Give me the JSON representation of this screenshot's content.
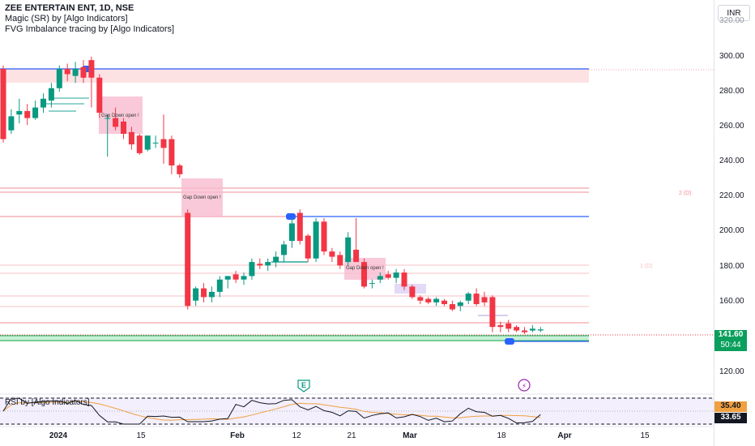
{
  "legend": {
    "title": "ZEE ENTERTAIN ENT, 1D, NSE",
    "indicator1": "Magic (SR) by [Algo Indicators]",
    "indicator2": "FVG Imbalance tracing by [Algo Indicators]"
  },
  "rsi_label": "RSI by [Algo  Indicators]",
  "currency": "INR",
  "price_ticks": [
    "320.00",
    "300.00",
    "280.00",
    "260.00",
    "240.00",
    "220.00",
    "200.00",
    "180.00",
    "160.00",
    "120.00"
  ],
  "price_badge": {
    "price": "141.60",
    "countdown": "50:44"
  },
  "rsi_values": {
    "upper": "35.40",
    "current": "33.65"
  },
  "time_ticks": [
    "2024",
    "15",
    "Feb",
    "12",
    "21",
    "Mar",
    "18",
    "Apr",
    "15"
  ],
  "fvg_label": "Gap Down open !",
  "sr_labels": {
    "upper": "2 (D)",
    "lower": "1 (D)"
  },
  "event_markers": {
    "earnings": "E",
    "split": "⚡"
  },
  "colors": {
    "up": "#089981",
    "down": "#f23645",
    "accent": "#2962ff",
    "fvg": "#f8bbd0"
  },
  "chart_data": {
    "type": "candlestick",
    "symbol": "ZEE ENTERTAIN ENT",
    "interval": "1D",
    "ylim": [
      115,
      322
    ],
    "candles": [
      {
        "o": 290,
        "h": 292,
        "l": 248,
        "c": 250
      },
      {
        "o": 255,
        "h": 267,
        "l": 253,
        "c": 263
      },
      {
        "o": 264,
        "h": 273,
        "l": 259,
        "c": 266
      },
      {
        "o": 266,
        "h": 270,
        "l": 258,
        "c": 262
      },
      {
        "o": 262,
        "h": 272,
        "l": 261,
        "c": 268
      },
      {
        "o": 268,
        "h": 276,
        "l": 265,
        "c": 273
      },
      {
        "o": 272,
        "h": 282,
        "l": 268,
        "c": 279
      },
      {
        "o": 279,
        "h": 292,
        "l": 277,
        "c": 290
      },
      {
        "o": 290,
        "h": 293,
        "l": 283,
        "c": 287
      },
      {
        "o": 286,
        "h": 294,
        "l": 282,
        "c": 290
      },
      {
        "o": 291,
        "h": 295,
        "l": 282,
        "c": 285
      },
      {
        "o": 295,
        "h": 297,
        "l": 268,
        "c": 285
      },
      {
        "o": 285,
        "h": 287,
        "l": 262,
        "c": 265
      },
      {
        "o": 262,
        "h": 264,
        "l": 240,
        "c": 262
      },
      {
        "o": 262,
        "h": 268,
        "l": 255,
        "c": 257
      },
      {
        "o": 260,
        "h": 262,
        "l": 250,
        "c": 253
      },
      {
        "o": 254,
        "h": 257,
        "l": 244,
        "c": 247
      },
      {
        "o": 252,
        "h": 253,
        "l": 241,
        "c": 242
      },
      {
        "o": 244,
        "h": 252,
        "l": 243,
        "c": 252
      },
      {
        "o": 248,
        "h": 252,
        "l": 245,
        "c": 248
      },
      {
        "o": 250,
        "h": 264,
        "l": 236,
        "c": 245
      },
      {
        "o": 250,
        "h": 252,
        "l": 230,
        "c": 235
      },
      {
        "o": 235,
        "h": 236,
        "l": 228,
        "c": 230
      },
      {
        "o": 208,
        "h": 210,
        "l": 153,
        "c": 155
      },
      {
        "o": 158,
        "h": 166,
        "l": 155,
        "c": 165
      },
      {
        "o": 165,
        "h": 168,
        "l": 157,
        "c": 160
      },
      {
        "o": 160,
        "h": 166,
        "l": 157,
        "c": 163
      },
      {
        "o": 163,
        "h": 172,
        "l": 160,
        "c": 170
      },
      {
        "o": 170,
        "h": 172,
        "l": 165,
        "c": 172
      },
      {
        "o": 173,
        "h": 175,
        "l": 168,
        "c": 170
      },
      {
        "o": 170,
        "h": 174,
        "l": 167,
        "c": 172
      },
      {
        "o": 172,
        "h": 182,
        "l": 170,
        "c": 180
      },
      {
        "o": 179,
        "h": 182,
        "l": 176,
        "c": 178
      },
      {
        "o": 178,
        "h": 182,
        "l": 175,
        "c": 180
      },
      {
        "o": 180,
        "h": 186,
        "l": 177,
        "c": 183
      },
      {
        "o": 184,
        "h": 192,
        "l": 180,
        "c": 190
      },
      {
        "o": 192,
        "h": 205,
        "l": 188,
        "c": 202
      },
      {
        "o": 208,
        "h": 210,
        "l": 190,
        "c": 192
      },
      {
        "o": 195,
        "h": 196,
        "l": 180,
        "c": 182
      },
      {
        "o": 182,
        "h": 205,
        "l": 180,
        "c": 203
      },
      {
        "o": 203,
        "h": 205,
        "l": 184,
        "c": 186
      },
      {
        "o": 186,
        "h": 188,
        "l": 180,
        "c": 183
      },
      {
        "o": 184,
        "h": 186,
        "l": 176,
        "c": 178
      },
      {
        "o": 180,
        "h": 197,
        "l": 178,
        "c": 194
      },
      {
        "o": 187,
        "h": 205,
        "l": 180,
        "c": 180
      },
      {
        "o": 180,
        "h": 182,
        "l": 165,
        "c": 166
      },
      {
        "o": 168,
        "h": 170,
        "l": 165,
        "c": 168
      },
      {
        "o": 170,
        "h": 174,
        "l": 168,
        "c": 172
      },
      {
        "o": 173,
        "h": 175,
        "l": 170,
        "c": 171
      },
      {
        "o": 171,
        "h": 176,
        "l": 168,
        "c": 174
      },
      {
        "o": 174,
        "h": 176,
        "l": 164,
        "c": 166
      },
      {
        "o": 166,
        "h": 167,
        "l": 159,
        "c": 160
      },
      {
        "o": 160,
        "h": 161,
        "l": 156,
        "c": 158
      },
      {
        "o": 159,
        "h": 160,
        "l": 156,
        "c": 157
      },
      {
        "o": 157,
        "h": 160,
        "l": 155,
        "c": 159
      },
      {
        "o": 158,
        "h": 159,
        "l": 155,
        "c": 156
      },
      {
        "o": 156,
        "h": 158,
        "l": 152,
        "c": 153
      },
      {
        "o": 155,
        "h": 158,
        "l": 152,
        "c": 157
      },
      {
        "o": 158,
        "h": 163,
        "l": 156,
        "c": 162
      },
      {
        "o": 162,
        "h": 165,
        "l": 155,
        "c": 156
      },
      {
        "o": 160,
        "h": 163,
        "l": 155,
        "c": 157
      },
      {
        "o": 160,
        "h": 161,
        "l": 140,
        "c": 143
      },
      {
        "o": 144,
        "h": 146,
        "l": 140,
        "c": 143
      },
      {
        "o": 145,
        "h": 147,
        "l": 140,
        "c": 142
      },
      {
        "o": 143,
        "h": 144,
        "l": 140,
        "c": 141
      },
      {
        "o": 141,
        "h": 143,
        "l": 139,
        "c": 140
      },
      {
        "o": 141,
        "h": 144,
        "l": 140,
        "c": 142
      },
      {
        "o": 141,
        "h": 143,
        "l": 140,
        "c": 141.6
      }
    ]
  }
}
